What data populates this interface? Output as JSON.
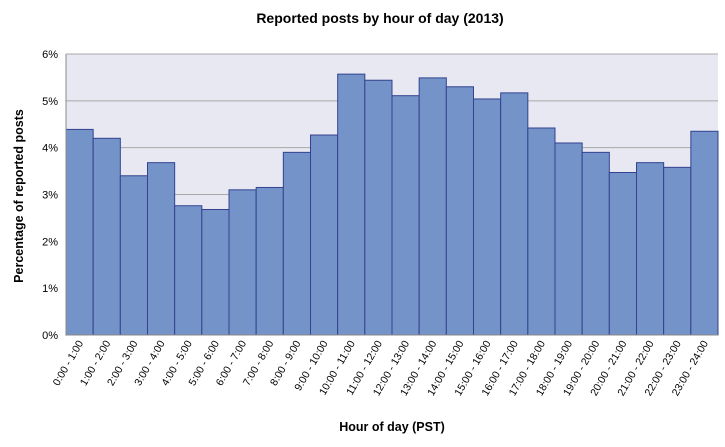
{
  "chart_data": {
    "type": "bar",
    "title": "Reported posts by hour of day (2013)",
    "xlabel": "Hour of day (PST)",
    "ylabel": "Percentage of reported posts",
    "ylim": [
      0,
      6
    ],
    "yticks": [
      "0%",
      "1%",
      "2%",
      "3%",
      "4%",
      "5%",
      "6%"
    ],
    "grid": true,
    "legend": "none",
    "colors": {
      "bar_fill": "#7393c9",
      "bar_stroke": "#33428f",
      "plot_bg": "#e8e8f2",
      "grid": "#a9a9a9"
    },
    "categories": [
      "0:00 - 1:00",
      "1:00 - 2:00",
      "2:00 - 3:00",
      "3:00 - 4:00",
      "4:00 - 5:00",
      "5:00 - 6:00",
      "6:00 - 7:00",
      "7:00 - 8:00",
      "8:00 - 9:00",
      "9:00 - 10:00",
      "10:00 - 11:00",
      "11:00 - 12:00",
      "12:00 - 13:00",
      "13:00 - 14:00",
      "14:00 - 15:00",
      "15:00 - 16:00",
      "16:00 - 17:00",
      "17:00 - 18:00",
      "18:00 - 19:00",
      "19:00 - 20:00",
      "20:00 - 21:00",
      "21:00 - 22:00",
      "22:00 - 23:00",
      "23:00 - 24:00"
    ],
    "values": [
      4.39,
      4.2,
      3.4,
      3.68,
      2.76,
      2.68,
      3.1,
      3.15,
      3.9,
      4.27,
      5.57,
      5.44,
      5.11,
      5.49,
      5.3,
      5.04,
      5.17,
      4.42,
      4.1,
      3.9,
      3.47,
      3.68,
      3.58,
      4.35
    ]
  }
}
